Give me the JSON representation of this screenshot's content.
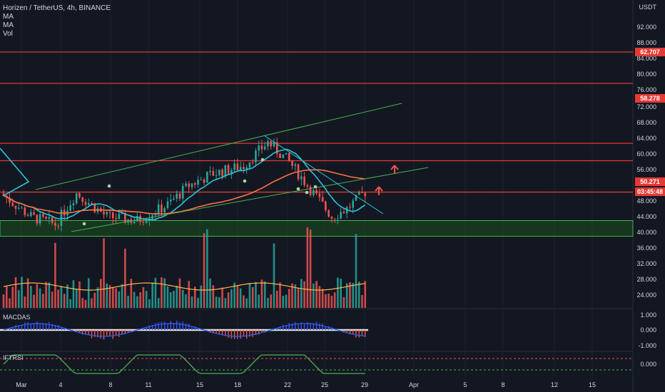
{
  "title": "Horizen / TetherUS, 4h, BINANCE",
  "indicators": [
    "MA",
    "MA",
    "Vol"
  ],
  "currency": "USDT",
  "price_axis_labels": [
    "92.000",
    "88.000",
    "84.000",
    "80.000",
    "76.000",
    "72.000",
    "68.000",
    "64.000",
    "60.000",
    "56.000",
    "48.000",
    "44.000",
    "40.000",
    "36.000",
    "32.000",
    "28.000",
    "24.000"
  ],
  "price_tags": {
    "level_1": "62.707",
    "level_2": "58.278",
    "current_price": "50.271",
    "countdown": "03:45:48"
  },
  "macd": {
    "label": "MACDAS",
    "ticks": [
      "1.000",
      "0.000",
      "-1.000"
    ]
  },
  "iftrsi": {
    "label": "IFTRSI",
    "ticks": [
      "0.000"
    ]
  },
  "x_axis_labels": [
    "Mar",
    "4",
    "8",
    "11",
    "15",
    "18",
    "22",
    "25",
    "29",
    "Apr",
    "5",
    "8",
    "12",
    "15"
  ],
  "colors": {
    "background": "#131722",
    "up": "#26a69a",
    "down": "#ef5350",
    "ma_fast": "#26c6da",
    "ma_slow": "#ff7043",
    "channel": "#4caf50",
    "resistance": "#e53935",
    "support_zone": "#1b5e20",
    "trend_down": "#26c6da"
  },
  "chart_data": {
    "type": "candlestick",
    "price_range": [
      38,
      96
    ],
    "support_zone": [
      39,
      43
    ],
    "horizontal_levels": [
      86,
      78,
      62.707,
      58.278,
      50.271
    ],
    "last_price": 50.271
  }
}
